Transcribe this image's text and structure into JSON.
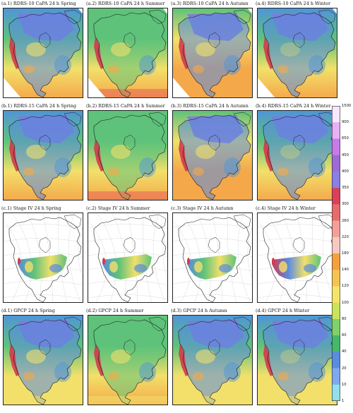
{
  "panels": [
    {
      "label": "(a.1) RDRS-10 CaPA 24 h Spring",
      "style": "rdrs",
      "season": "spring"
    },
    {
      "label": "(a.2) RDRS-10 CaPA 24 h Summer",
      "style": "rdrs",
      "season": "summer"
    },
    {
      "label": "(a.3) RDRS-10 CaPA 24 h Autumn",
      "style": "rdrs",
      "season": "autumn"
    },
    {
      "label": "(a.4) RDRS-10 CaPA 24 h Winter",
      "style": "rdrs",
      "season": "winter"
    },
    {
      "label": "(b.1) RDRS-15 CaPA 24 h Spring",
      "style": "rdrs",
      "season": "spring"
    },
    {
      "label": "(b.2) RDRS-15 CaPA 24 h Summer",
      "style": "rdrs",
      "season": "summer"
    },
    {
      "label": "(b.3) RDRS-15 CaPA 24 h Autumn",
      "style": "rdrs",
      "season": "autumn"
    },
    {
      "label": "(b.4) RDRS-15 CaPA 24 h Winter",
      "style": "rdrs",
      "season": "winter"
    },
    {
      "label": "(c.1) Stage IV 24 h Spring",
      "style": "stage4",
      "season": "spring"
    },
    {
      "label": "(c.2) Stage IV 24 h Summer",
      "style": "stage4",
      "season": "summer"
    },
    {
      "label": "(c.3) Stage IV 24 h Autumn",
      "style": "stage4",
      "season": "autumn"
    },
    {
      "label": "(c.4) Stage IV 24 h Winter",
      "style": "stage4",
      "season": "winter"
    },
    {
      "label": "(d.1) GPCP 24 h Spring",
      "style": "gpcp",
      "season": "spring"
    },
    {
      "label": "(d.2) GPCP 24 h Summer",
      "style": "gpcp",
      "season": "summer"
    },
    {
      "label": "(d.3) GPCP 24 h Autumn",
      "style": "gpcp",
      "season": "autumn"
    },
    {
      "label": "(d.4) GPCP 24 h Winter",
      "style": "gpcp",
      "season": "winter"
    }
  ],
  "colorbar": {
    "ticks": [
      "1500",
      "900",
      "650",
      "450",
      "400",
      "350",
      "300",
      "260",
      "220",
      "180",
      "140",
      "120",
      "100",
      "80",
      "60",
      "40",
      "20",
      "10",
      "1"
    ],
    "colors": [
      "#f7e8ff",
      "#e8b0f5",
      "#c77be8",
      "#a06ad6",
      "#8a7fe6",
      "#d9405a",
      "#e86b6b",
      "#f2a09a",
      "#f7c9c0",
      "#f4a03c",
      "#f6c352",
      "#f5e46a",
      "#c9e35a",
      "#7fd16a",
      "#45b86a",
      "#5a8de0",
      "#7fa9ee",
      "#8fe0ea"
    ]
  },
  "colors": {
    "ocean_wet": "#4f95d8",
    "ocean_mid": "#4fb872",
    "land_green": "#5ec27a",
    "land_dry": "#f2e06a",
    "arid": "#f4a84a",
    "dry_red": "#e8645a",
    "north_purple": "#8176de",
    "coast_red": "#d23a4e",
    "wet_blue": "#5a8be0",
    "no_data": "#ffffff"
  }
}
